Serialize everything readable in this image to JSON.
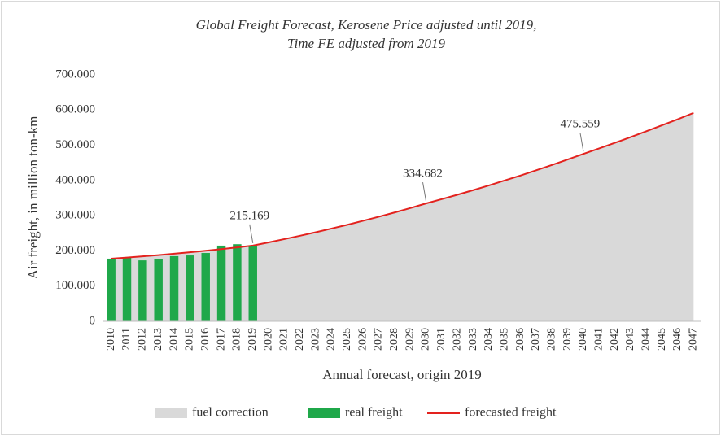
{
  "chart_data": {
    "type": "combo",
    "title": [
      "Global Freight Forecast, Kerosene Price adjusted until 2019,",
      "Time FE adjusted from 2019"
    ],
    "y_label": "Air freight, in million ton-km",
    "x_label": "Annual forecast, origin 2019",
    "categories": [
      "2010",
      "2011",
      "2012",
      "2013",
      "2014",
      "2015",
      "2016",
      "2017",
      "2018",
      "2019",
      "2020",
      "2021",
      "2022",
      "2023",
      "2024",
      "2025",
      "2026",
      "2027",
      "2028",
      "2029",
      "2030",
      "2031",
      "2032",
      "2033",
      "2034",
      "2035",
      "2036",
      "2037",
      "2038",
      "2039",
      "2040",
      "2041",
      "2042",
      "2043",
      "2044",
      "2045",
      "2046",
      "2047"
    ],
    "ylim": [
      0,
      700000
    ],
    "yticks": [
      0,
      {
        "value": 100000,
        "label": "100.000"
      },
      {
        "value": 200000,
        "label": "200.000"
      },
      {
        "value": 300000,
        "label": "300.000"
      },
      {
        "value": 400000,
        "label": "400.000"
      },
      {
        "value": 500000,
        "label": "500.000"
      },
      {
        "value": 600000,
        "label": "600.000"
      },
      {
        "value": 700000,
        "label": "700.000"
      }
    ],
    "grid": false,
    "legend": "bottom",
    "series": [
      {
        "name": "fuel correction",
        "type": "area",
        "color": "#d9d9d9",
        "values": [
          178000,
          181000,
          184500,
          188000,
          192000,
          196000,
          200500,
          205000,
          210000,
          215169,
          224000,
          233500,
          243000,
          253000,
          263500,
          274000,
          285500,
          297000,
          309000,
          321500,
          334682,
          347000,
          359500,
          372500,
          386000,
          400000,
          414000,
          429000,
          444000,
          459500,
          475559,
          491000,
          507000,
          523000,
          540000,
          557000,
          574000,
          592000
        ]
      },
      {
        "name": "real freight",
        "type": "bar",
        "color": "#1fa84a",
        "values": [
          178000,
          182000,
          173000,
          176000,
          185000,
          187000,
          194000,
          215000,
          219000,
          215169,
          null,
          null,
          null,
          null,
          null,
          null,
          null,
          null,
          null,
          null,
          null,
          null,
          null,
          null,
          null,
          null,
          null,
          null,
          null,
          null,
          null,
          null,
          null,
          null,
          null,
          null,
          null,
          null
        ]
      },
      {
        "name": "forecasted freight",
        "type": "line",
        "color": "#e3221e",
        "values": [
          178000,
          181000,
          184500,
          188000,
          192000,
          196000,
          200500,
          205000,
          210000,
          215169,
          224000,
          233500,
          243000,
          253000,
          263500,
          274000,
          285500,
          297000,
          309000,
          321500,
          334682,
          347000,
          359500,
          372500,
          386000,
          400000,
          414000,
          429000,
          444000,
          459500,
          475559,
          491000,
          507000,
          523000,
          540000,
          557000,
          574000,
          592000
        ],
        "value_labels": [
          null,
          null,
          null,
          null,
          null,
          null,
          null,
          null,
          null,
          "215.169",
          null,
          null,
          null,
          null,
          null,
          null,
          null,
          null,
          null,
          null,
          "334.682",
          null,
          null,
          null,
          null,
          null,
          null,
          null,
          null,
          null,
          "475.559",
          null,
          null,
          null,
          null,
          null,
          null,
          null
        ]
      }
    ]
  }
}
